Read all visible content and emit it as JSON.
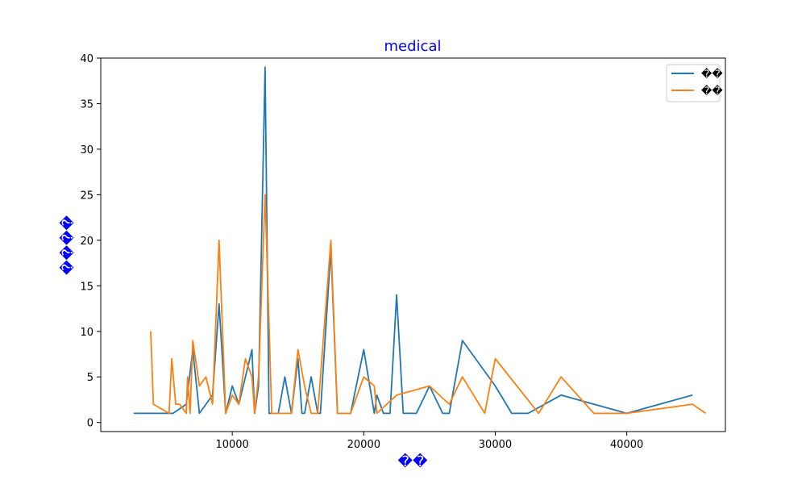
{
  "chart_data": {
    "type": "line",
    "title": "medical",
    "xlabel": "��",
    "ylabel": "����",
    "label_color": "#0000ff",
    "xlim": [
      0,
      47500
    ],
    "ylim": [
      -1,
      40
    ],
    "xticks": [
      10000,
      20000,
      30000,
      40000
    ],
    "yticks": [
      0,
      5,
      10,
      15,
      20,
      25,
      30,
      35,
      40
    ],
    "legend_position": "top-right",
    "series": [
      {
        "name": "��",
        "color": "#1f77b4",
        "x": [
          2500,
          5000,
          5500,
          6500,
          7000,
          7500,
          8500,
          9000,
          9500,
          10000,
          10500,
          11000,
          11500,
          11700,
          12000,
          12500,
          12800,
          13000,
          13500,
          14000,
          14500,
          15000,
          15300,
          15500,
          16000,
          16500,
          16700,
          17500,
          18000,
          18500,
          19000,
          20000,
          20800,
          21000,
          21500,
          22000,
          22500,
          23000,
          23500,
          24000,
          25000,
          26000,
          26500,
          27500,
          30000,
          31250,
          32500,
          35000,
          37500,
          40000,
          45000
        ],
        "y": [
          1,
          1,
          1,
          2,
          8,
          1,
          3,
          13,
          1,
          4,
          2,
          5,
          8,
          1,
          4,
          39,
          1,
          1,
          1,
          5,
          1,
          7,
          1,
          1,
          5,
          1,
          1,
          19,
          1,
          1,
          1,
          8,
          1,
          3,
          1,
          1,
          14,
          1,
          1,
          1,
          4,
          1,
          1,
          9,
          4,
          1,
          1,
          3,
          2,
          1,
          3
        ]
      },
      {
        "name": "��",
        "color": "#ff7f0e",
        "x": [
          3800,
          4000,
          5200,
          5400,
          5700,
          6000,
          6500,
          6600,
          6800,
          7000,
          7500,
          8000,
          8500,
          9000,
          9500,
          10000,
          10500,
          11000,
          11500,
          11700,
          12000,
          12500,
          13000,
          14000,
          14500,
          15000,
          15500,
          16000,
          16500,
          17500,
          18000,
          19000,
          20000,
          20800,
          21000,
          22500,
          25000,
          26500,
          27500,
          29200,
          30000,
          33300,
          35000,
          37500,
          40000,
          45000,
          46000
        ],
        "y": [
          10,
          2,
          1,
          7,
          2,
          2,
          1,
          5,
          1,
          9,
          4,
          5,
          2,
          20,
          1,
          3,
          2,
          7,
          5,
          1,
          5,
          25,
          1,
          1,
          1,
          8,
          4,
          1,
          1,
          20,
          1,
          1,
          5,
          4,
          1,
          3,
          4,
          2,
          5,
          1,
          7,
          1,
          5,
          1,
          1,
          2,
          1
        ]
      }
    ]
  }
}
